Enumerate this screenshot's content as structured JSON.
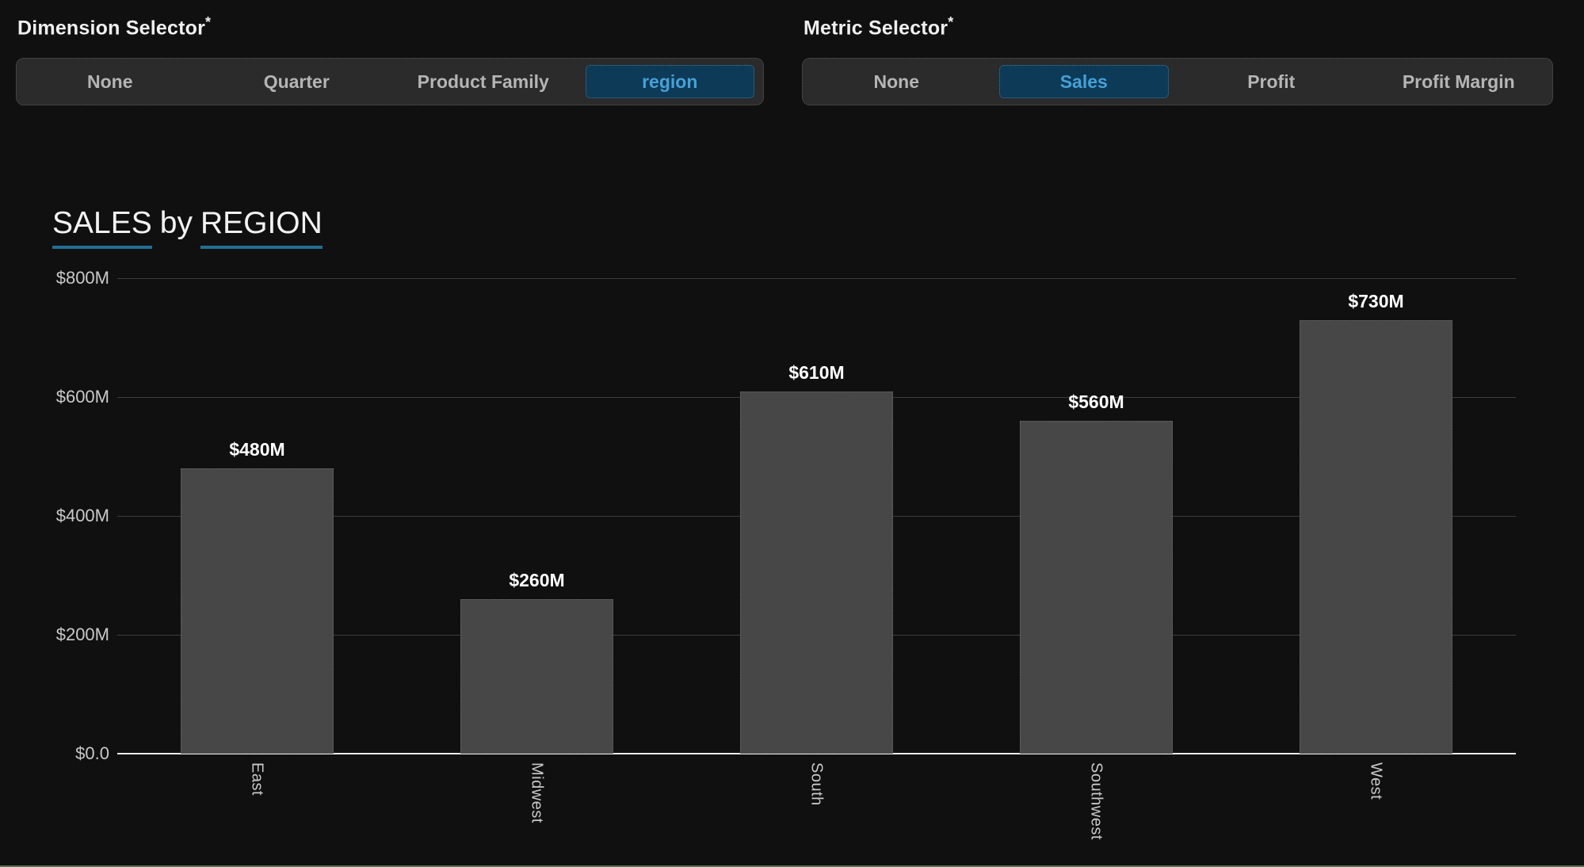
{
  "dimension_selector": {
    "label": "Dimension Selector",
    "required_marker": "*",
    "options": [
      {
        "label": "None",
        "selected": false
      },
      {
        "label": "Quarter",
        "selected": false
      },
      {
        "label": "Product Family",
        "selected": false
      },
      {
        "label": "region",
        "selected": true
      }
    ]
  },
  "metric_selector": {
    "label": "Metric Selector",
    "required_marker": "*",
    "options": [
      {
        "label": "None",
        "selected": false
      },
      {
        "label": "Sales",
        "selected": true
      },
      {
        "label": "Profit",
        "selected": false
      },
      {
        "label": "Profit Margin",
        "selected": false
      }
    ]
  },
  "chart": {
    "title": {
      "metric": "SALES",
      "connector": "by",
      "dimension": "REGION"
    }
  },
  "chart_data": {
    "type": "bar",
    "title": "SALES by REGION",
    "categories": [
      "East",
      "Midwest",
      "South",
      "Southwest",
      "West"
    ],
    "values": [
      480,
      260,
      610,
      560,
      730
    ],
    "value_labels": [
      "$480M",
      "$260M",
      "$610M",
      "$560M",
      "$730M"
    ],
    "y_ticks": [
      {
        "label": "$800M",
        "value": 800
      },
      {
        "label": "$600M",
        "value": 600
      },
      {
        "label": "$400M",
        "value": 400
      },
      {
        "label": "$200M",
        "value": 200
      },
      {
        "label": "$0.0",
        "value": 0
      }
    ],
    "ylim": [
      0,
      800
    ],
    "xlabel": "",
    "ylabel": "",
    "grid": true,
    "legend": false,
    "bar_color": "#474747"
  },
  "colors": {
    "background": "#101010",
    "selected_option_bg": "#0d3a57",
    "selected_option_text": "#45a1d6",
    "title_underline": "#226e93",
    "bar_fill": "#474747",
    "baseline": "#ececec",
    "bottom_border_line": "#4c7a52"
  }
}
